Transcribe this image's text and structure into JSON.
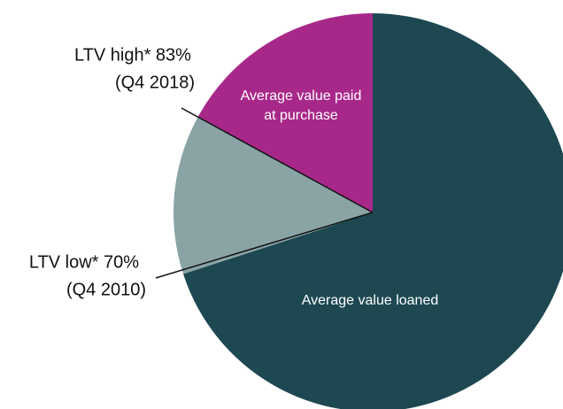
{
  "chart_data": {
    "type": "pie",
    "categories": [
      "Average value loaned",
      null,
      "Average value paid at purchase"
    ],
    "values": [
      70,
      13,
      17
    ],
    "colors": [
      "#1d4851",
      "#8aa4a6",
      "#a8288a"
    ],
    "annotations": [
      {
        "lines": [
          "LTV high* 83%",
          "(Q4 2018)"
        ]
      },
      {
        "lines": [
          "LTV low* 70%",
          "(Q4 2010)"
        ]
      }
    ]
  }
}
